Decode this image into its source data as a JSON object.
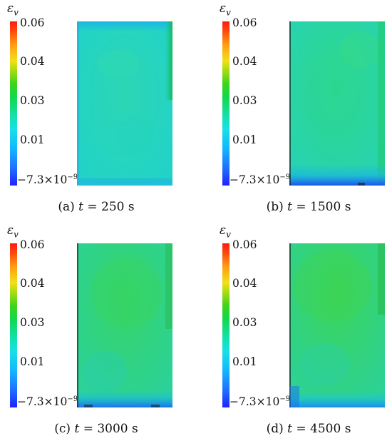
{
  "colorbar": {
    "symbol": "ε",
    "symbol_sub": "v",
    "ticks": [
      "0.06",
      "0.04",
      "0.03",
      "0.01"
    ],
    "min_label_base": "−7.3×10",
    "min_label_exp": "−9",
    "colors": [
      "#1f22ff",
      "#14b4ff",
      "#14e0b0",
      "#12d84a",
      "#f2e01a",
      "#ff1a12"
    ]
  },
  "panels": [
    {
      "label": "(a)",
      "var": "t",
      "eq": " = 250 s"
    },
    {
      "label": "(b)",
      "var": "t",
      "eq": " = 1500 s"
    },
    {
      "label": "(c)",
      "var": "t",
      "eq": " = 3000 s"
    },
    {
      "label": "(d)",
      "var": "t",
      "eq": " = 4500 s"
    }
  ]
}
